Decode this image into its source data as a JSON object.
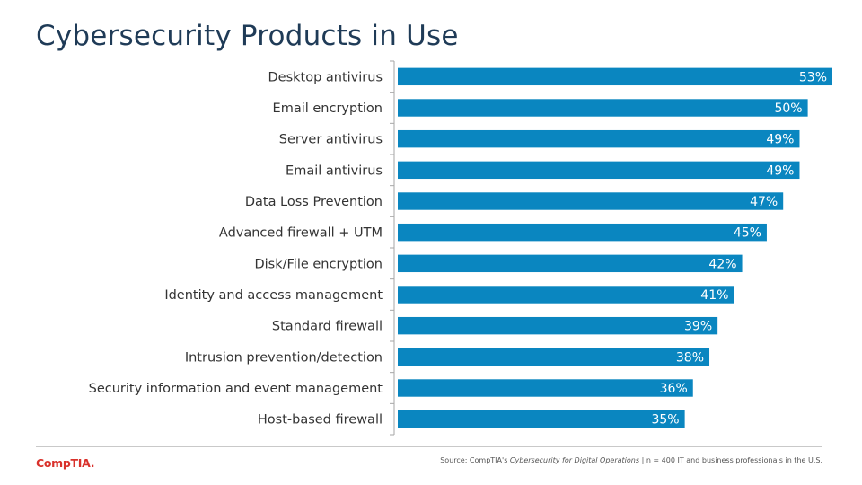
{
  "header": {
    "title": "Cybersecurity Products in Use"
  },
  "chart_data": {
    "type": "bar",
    "orientation": "horizontal",
    "categories": [
      "Desktop antivirus",
      "Email encryption",
      "Server antivirus",
      "Email antivirus",
      "Data Loss Prevention",
      "Advanced firewall + UTM",
      "Disk/File encryption",
      "Identity and access management",
      "Standard firewall",
      "Intrusion prevention/detection",
      "Security information and event management",
      "Host-based firewall"
    ],
    "values": [
      53,
      50,
      49,
      49,
      47,
      45,
      42,
      41,
      39,
      38,
      36,
      35
    ],
    "value_labels": [
      "53%",
      "50%",
      "49%",
      "49%",
      "47%",
      "45%",
      "42%",
      "41%",
      "39%",
      "38%",
      "36%",
      "35%"
    ],
    "xlim": [
      0,
      53
    ],
    "bar_color": "#0a86c0",
    "value_label_color": "#ffffff",
    "grid": false,
    "legend": "none"
  },
  "footer": {
    "logo_text": "CompTIA.",
    "logo_color": "#d9312b",
    "source_prefix": "Source: CompTIA's",
    "source_title": "Cybersecurity for Digital Operations",
    "source_suffix": "| n = 400 IT and business professionals in the U.S."
  }
}
